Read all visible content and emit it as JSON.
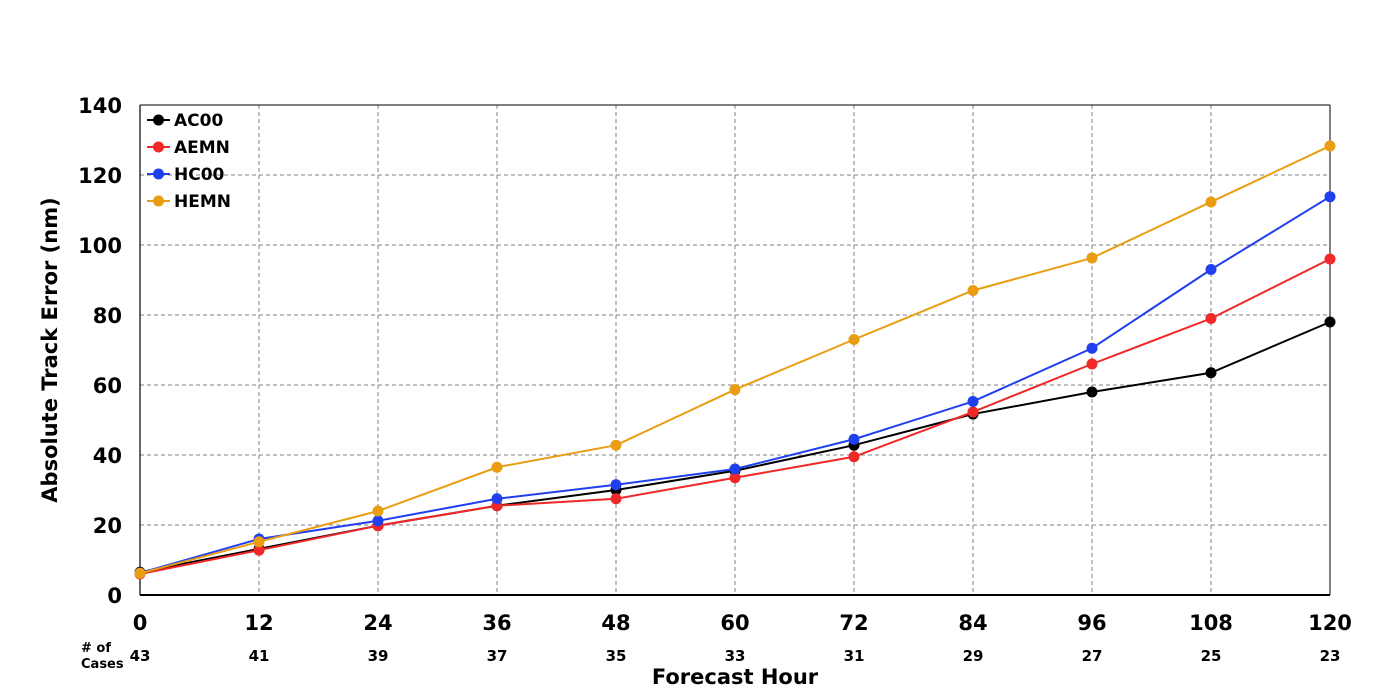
{
  "chart_data": {
    "type": "line",
    "title": "",
    "xlabel": "Forecast Hour",
    "ylabel": "Absolute Track Error (nm)",
    "x": [
      0,
      12,
      24,
      36,
      48,
      60,
      72,
      84,
      96,
      108,
      120
    ],
    "xlim": [
      0,
      120
    ],
    "ylim": [
      0,
      140
    ],
    "yticks": [
      0,
      20,
      40,
      60,
      80,
      100,
      120,
      140
    ],
    "grid": true,
    "legend_position": "top-left",
    "cases_label_line1": "# of",
    "cases_label_line2": "Cases",
    "cases": [
      43,
      41,
      39,
      37,
      35,
      33,
      31,
      29,
      27,
      25,
      23
    ],
    "series": [
      {
        "name": "AC00",
        "color": "#000000",
        "values": [
          6.5,
          13.2,
          19.8,
          25.5,
          30.0,
          35.5,
          42.8,
          51.7,
          58.0,
          63.5,
          78.0
        ]
      },
      {
        "name": "AEMN",
        "color": "#f02828",
        "values": [
          6.0,
          12.8,
          19.8,
          25.5,
          27.5,
          33.5,
          39.5,
          52.3,
          66.0,
          79.0,
          96.0
        ]
      },
      {
        "name": "HC00",
        "color": "#2040f0",
        "values": [
          6.3,
          16.0,
          21.2,
          27.5,
          31.5,
          36.0,
          44.5,
          55.3,
          70.5,
          93.0,
          113.8
        ]
      },
      {
        "name": "HEMN",
        "color": "#e89e10",
        "values": [
          6.2,
          15.2,
          24.0,
          36.5,
          42.8,
          58.7,
          73.0,
          87.0,
          96.3,
          112.3,
          128.3
        ]
      }
    ]
  }
}
